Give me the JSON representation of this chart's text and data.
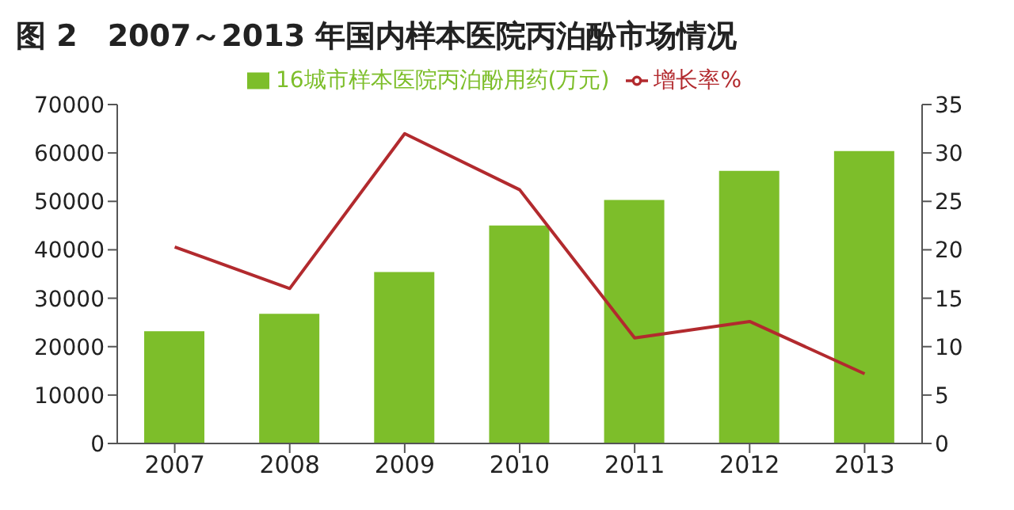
{
  "chart_data": {
    "type": "bar",
    "title": "图 2　2007～2013 年国内样本医院丙泊酚市场情况",
    "categories": [
      "2007",
      "2008",
      "2009",
      "2010",
      "2011",
      "2012",
      "2013"
    ],
    "series": [
      {
        "name": "16城市样本医院丙泊酚用药(万元)",
        "color": "#7dbe2a",
        "values": [
          23200,
          26800,
          35400,
          45000,
          50300,
          56300,
          60400
        ]
      },
      {
        "name": "增长率%",
        "type": "line",
        "axis": "y2",
        "color": "#b22a2e",
        "values": [
          20.3,
          16.0,
          32.0,
          26.2,
          10.9,
          12.6,
          7.2
        ]
      }
    ],
    "ylim": [
      0,
      70000
    ],
    "yticks": [
      0,
      10000,
      20000,
      30000,
      40000,
      50000,
      60000,
      70000
    ],
    "y2lim": [
      0,
      35
    ],
    "y2ticks": [
      0,
      5,
      10,
      15,
      20,
      25,
      30,
      35
    ],
    "grid": false,
    "legend": "top",
    "marker": "none"
  }
}
